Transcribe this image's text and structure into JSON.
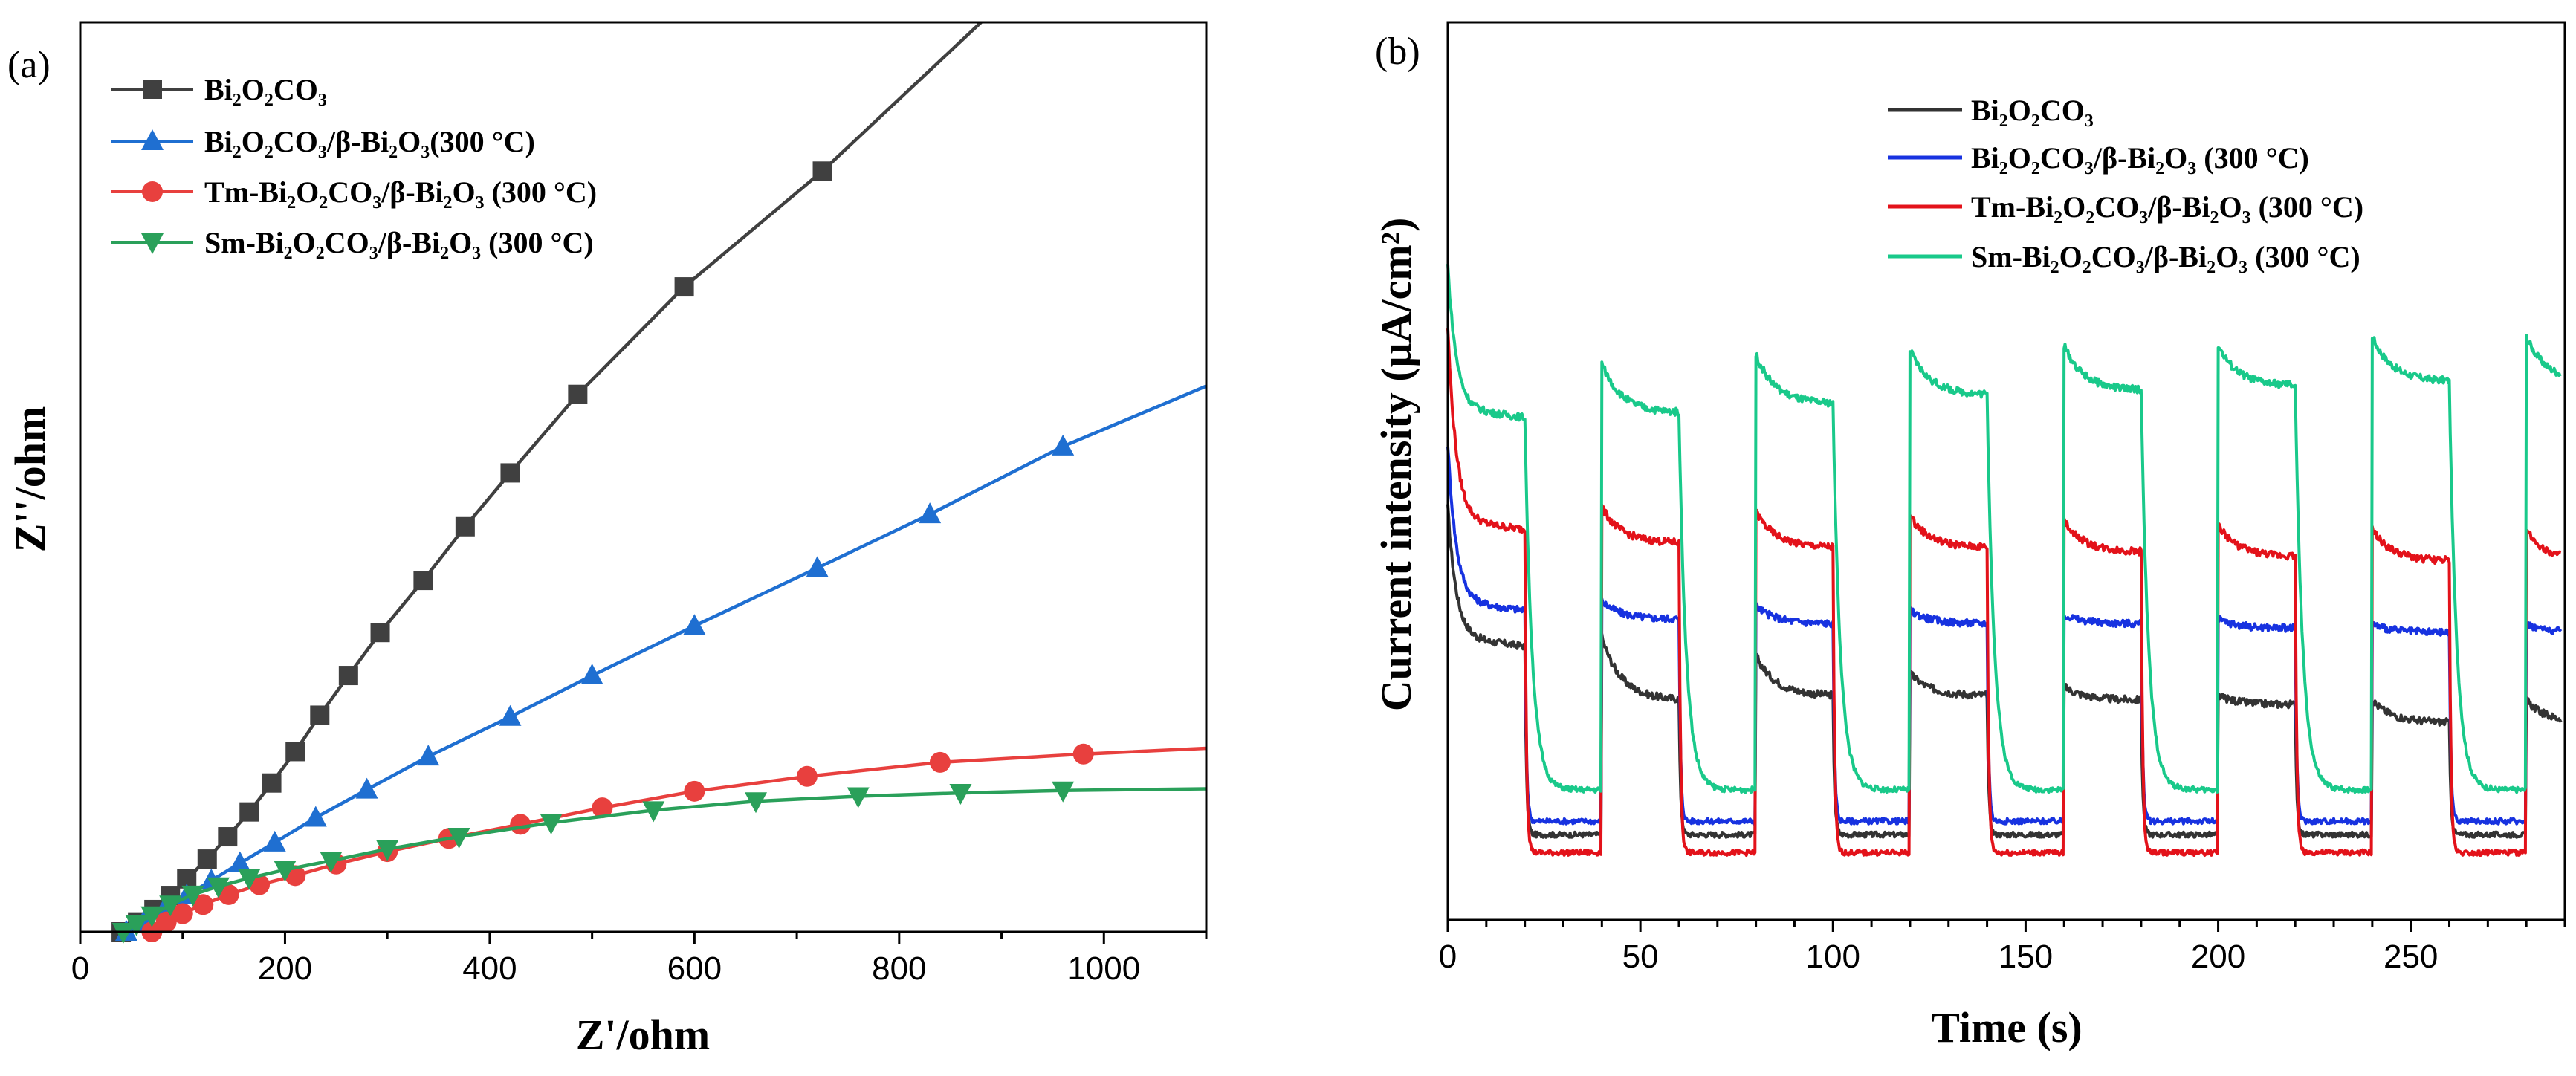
{
  "chart_data": [
    {
      "panel_label": "(a)",
      "type": "line",
      "xlabel": "Z'/ohm",
      "ylabel": "Z''/ohm",
      "xlim": [
        0,
        1100
      ],
      "ylim": [
        0,
        1100
      ],
      "x_ticks": [
        0,
        200,
        400,
        600,
        800,
        1000
      ],
      "y_ticks_shown": false,
      "legend_position": "top-left",
      "series": [
        {
          "name": "Bi2O2CO3",
          "legend_label": "Bi₂O₂CO₃",
          "color": "#404040",
          "marker": "square",
          "points": [
            [
              40,
              0
            ],
            [
              56,
              12
            ],
            [
              72,
              27
            ],
            [
              88,
              44
            ],
            [
              104,
              64
            ],
            [
              124,
              88
            ],
            [
              144,
              115
            ],
            [
              165,
              145
            ],
            [
              187,
              180
            ],
            [
              210,
              218
            ],
            [
              234,
              262
            ],
            [
              262,
              310
            ],
            [
              293,
              362
            ],
            [
              335,
              425
            ],
            [
              376,
              490
            ],
            [
              420,
              555
            ],
            [
              486,
              650
            ],
            [
              590,
              780
            ],
            [
              725,
              920
            ],
            [
              880,
              1100
            ]
          ]
        },
        {
          "name": "Bi2O2CO3/β-Bi2O3(300 °C)",
          "legend_label": "Bi₂O₂CO₃/β-Bi₂O₃(300 °C)",
          "color": "#1f6fd1",
          "marker": "triangle-up",
          "points": [
            [
              45,
              0
            ],
            [
              62,
              12
            ],
            [
              82,
              27
            ],
            [
              104,
              44
            ],
            [
              128,
              62
            ],
            [
              156,
              83
            ],
            [
              190,
              108
            ],
            [
              230,
              138
            ],
            [
              280,
              172
            ],
            [
              340,
              212
            ],
            [
              420,
              260
            ],
            [
              500,
              310
            ],
            [
              600,
              370
            ],
            [
              720,
              440
            ],
            [
              830,
              505
            ],
            [
              960,
              587
            ],
            [
              1100,
              660
            ]
          ]
        },
        {
          "name": "Tm-Bi2O2CO3/β-Bi2O3 (300 °C)",
          "legend_label": "Tm-Bi₂O₂CO₃/β-Bi₂O₃ (300 °C)",
          "color": "#e8403e",
          "marker": "circle",
          "points": [
            [
              70,
              0
            ],
            [
              84,
              12
            ],
            [
              100,
              22
            ],
            [
              120,
              33
            ],
            [
              145,
              45
            ],
            [
              175,
              57
            ],
            [
              210,
              68
            ],
            [
              250,
              82
            ],
            [
              300,
              97
            ],
            [
              360,
              113
            ],
            [
              430,
              130
            ],
            [
              510,
              150
            ],
            [
              600,
              170
            ],
            [
              710,
              188
            ],
            [
              840,
              205
            ],
            [
              980,
              215
            ],
            [
              1100,
              222
            ]
          ]
        },
        {
          "name": "Sm-Bi2O2CO3/β-Bi2O3 (300 °C)",
          "legend_label": "Sm-Bi₂O₂CO₃/β-Bi₂O₃ (300 °C)",
          "color": "#2aa05a",
          "marker": "triangle-down",
          "points": [
            [
              42,
              0
            ],
            [
              55,
              9
            ],
            [
              70,
              20
            ],
            [
              88,
              33
            ],
            [
              110,
              45
            ],
            [
              135,
              55
            ],
            [
              165,
              65
            ],
            [
              200,
              75
            ],
            [
              245,
              86
            ],
            [
              300,
              100
            ],
            [
              370,
              115
            ],
            [
              460,
              132
            ],
            [
              560,
              147
            ],
            [
              660,
              158
            ],
            [
              760,
              164
            ],
            [
              860,
              168
            ],
            [
              960,
              171
            ],
            [
              1100,
              173
            ]
          ]
        }
      ]
    },
    {
      "panel_label": "(b)",
      "type": "line",
      "xlabel": "Time (s)",
      "ylabel": "Current intensity (μA/cm²)",
      "xlim": [
        0,
        290
      ],
      "ylim": [
        0,
        1
      ],
      "x_ticks": [
        0,
        50,
        100,
        150,
        200,
        250
      ],
      "y_ticks_shown": false,
      "legend_position": "top-right",
      "light_on_off_period_s": 20,
      "series": [
        {
          "name": "Bi2O2CO3",
          "legend_label": "Bi₂O₂CO₃",
          "color": "#333333",
          "dark": 0.095,
          "peaks": [
            0.45,
            0.315,
            0.295,
            0.275,
            0.26,
            0.25,
            0.245
          ],
          "ends": [
            0.305,
            0.245,
            0.25,
            0.25,
            0.245,
            0.24,
            0.22
          ]
        },
        {
          "name": "Bi2O2CO3/β-Bi2O3 (300 °C)",
          "legend_label": "Bi₂O₂CO₃/β-Bi₂O₃ (300 °C)",
          "color": "#1732e0",
          "dark": 0.11,
          "peaks": [
            0.52,
            0.355,
            0.35,
            0.345,
            0.34,
            0.335,
            0.33
          ],
          "ends": [
            0.345,
            0.335,
            0.33,
            0.33,
            0.33,
            0.325,
            0.32
          ]
        },
        {
          "name": "Tm-Bi2O2CO3/β-Bi2O3 (300 °C)",
          "legend_label": "Tm-Bi₂O₂CO₃/β-Bi₂O₃ (300 °C)",
          "color": "#e3121a",
          "dark": 0.075,
          "peaks": [
            0.65,
            0.46,
            0.455,
            0.45,
            0.445,
            0.44,
            0.435
          ],
          "ends": [
            0.435,
            0.42,
            0.415,
            0.415,
            0.41,
            0.405,
            0.4
          ]
        },
        {
          "name": "Sm-Bi2O2CO3/β-Bi2O3 (300 °C)",
          "legend_label": "Sm-Bi₂O₂CO₃/β-Bi₂O₃ (300 °C)",
          "color": "#19c98a",
          "dark": 0.145,
          "peaks": [
            0.72,
            0.62,
            0.63,
            0.635,
            0.64,
            0.64,
            0.65
          ],
          "ends": [
            0.56,
            0.565,
            0.575,
            0.585,
            0.59,
            0.595,
            0.6
          ]
        }
      ]
    }
  ]
}
